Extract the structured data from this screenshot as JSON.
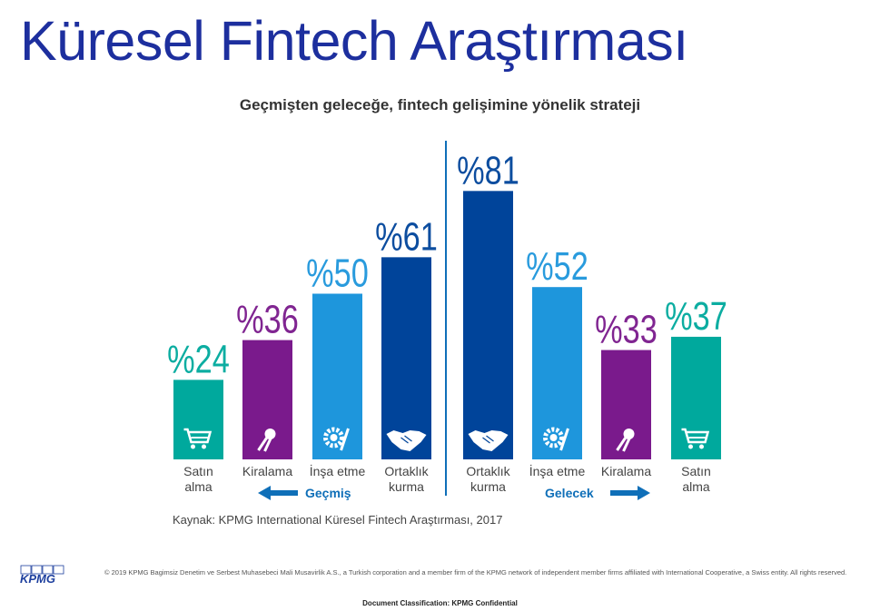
{
  "page": {
    "title": "Küresel Fintech Araştırması",
    "source": "Kaynak: KPMG International Küresel Fintech Araştırması, 2017",
    "copyright": "© 2019 KPMG Bagimsiz Denetim ve Serbest Muhasebeci Mali Musavirlik A.S., a Turkish corporation and a member firm of the KPMG network of independent member firms affiliated with International Cooperative, a Swiss entity. All rights reserved.",
    "classification": "Document Classification: KPMG Confidential",
    "logo_text": "KPMG"
  },
  "chart_data": {
    "type": "bar",
    "title": "Geçmişten geleceğe, fintech gelişimine yönelik strateji",
    "groups": [
      {
        "name": "Geçmiş",
        "direction": "left"
      },
      {
        "name": "Gelecek",
        "direction": "right"
      }
    ],
    "categories": [
      [
        "Satın",
        "alma"
      ],
      [
        "Kiralama"
      ],
      [
        "İnşa etme"
      ],
      [
        "Ortaklık",
        "kurma"
      ],
      [
        "Ortaklık",
        "kurma"
      ],
      [
        "İnşa etme"
      ],
      [
        "Kiralama"
      ],
      [
        "Satın",
        "alma"
      ]
    ],
    "values": [
      24,
      36,
      50,
      61,
      81,
      52,
      33,
      37
    ],
    "value_labels": [
      "%24",
      "%36",
      "%50",
      "%61",
      "%81",
      "%52",
      "%33",
      "%37"
    ],
    "group_of_bar": [
      "Geçmiş",
      "Geçmiş",
      "Geçmiş",
      "Geçmiş",
      "Gelecek",
      "Gelecek",
      "Gelecek",
      "Gelecek"
    ],
    "icons": [
      "cart-icon",
      "keys-icon",
      "gear-wrench-icon",
      "handshake-icon",
      "handshake-icon",
      "gear-wrench-icon",
      "keys-icon",
      "cart-icon"
    ],
    "colors": [
      "#00a99d",
      "#7a1a8c",
      "#1e96dc",
      "#00449a",
      "#00449a",
      "#1e96dc",
      "#7a1a8c",
      "#00a99d"
    ],
    "ylim": [
      0,
      100
    ],
    "arrow_color": "#0f6fb8"
  }
}
